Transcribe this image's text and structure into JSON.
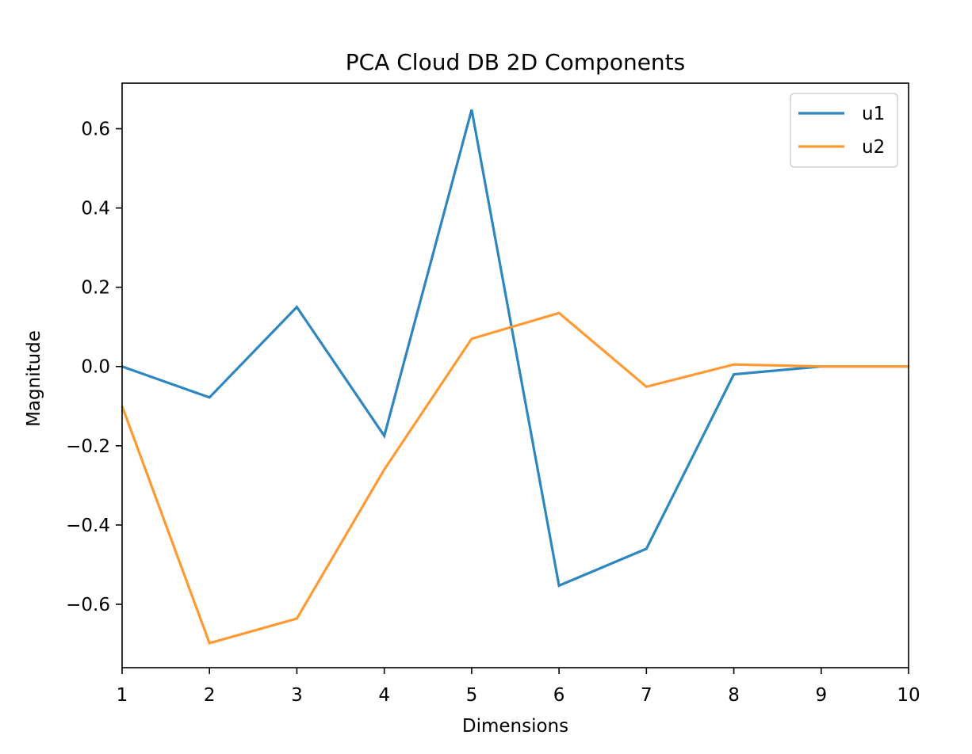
{
  "chart_data": {
    "type": "line",
    "title": "PCA Cloud DB 2D Components",
    "xlabel": "Dimensions",
    "ylabel": "Magnitude",
    "x": [
      1,
      2,
      3,
      4,
      5,
      6,
      7,
      8,
      9,
      10
    ],
    "xlim": [
      1,
      10
    ],
    "ylim": [
      -0.76,
      0.715
    ],
    "xticks": [
      1,
      2,
      3,
      4,
      5,
      6,
      7,
      8,
      9,
      10
    ],
    "xtick_labels": [
      "1",
      "2",
      "3",
      "4",
      "5",
      "6",
      "7",
      "8",
      "9",
      "10"
    ],
    "yticks": [
      0.6,
      0.4,
      0.2,
      0.0,
      -0.2,
      -0.4,
      -0.6
    ],
    "ytick_labels": [
      "0.6",
      "0.4",
      "0.2",
      "0.0",
      "−0.2",
      "−0.4",
      "−0.6"
    ],
    "grid": false,
    "legend_position": "top-right",
    "series": [
      {
        "name": "u1",
        "color": "#2e86c1",
        "values": [
          0.0,
          -0.078,
          0.15,
          -0.175,
          0.648,
          -0.553,
          -0.46,
          -0.02,
          0.0,
          0.0
        ]
      },
      {
        "name": "u2",
        "color": "#ff9933",
        "values": [
          -0.1,
          -0.698,
          -0.636,
          -0.26,
          0.07,
          0.135,
          -0.051,
          0.005,
          0.0,
          0.0
        ]
      }
    ]
  }
}
